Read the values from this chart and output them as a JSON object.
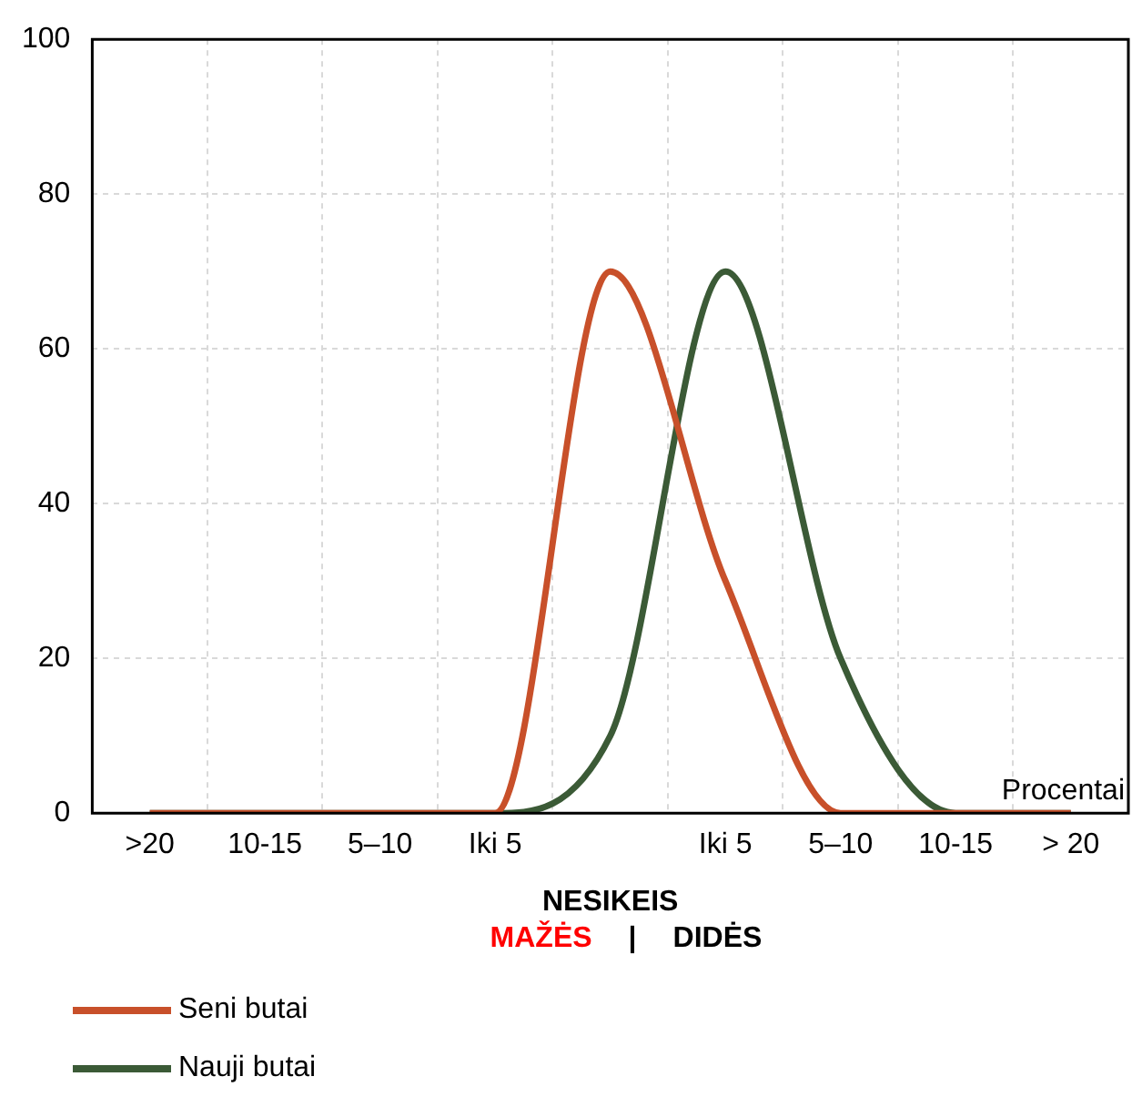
{
  "chart_data": {
    "type": "line",
    "ylabel": "Procentai",
    "xlabel": "NESIKEIS",
    "annotations": [
      "MAŽĖS",
      "|",
      "DIDĖS"
    ],
    "categories": [
      ">20",
      "10-15",
      "5–10",
      "Iki 5",
      null,
      "Iki 5",
      "5–10",
      "10-15",
      "> 20"
    ],
    "series": [
      {
        "name": "Seni butai",
        "color": "#c8502a",
        "values": [
          0,
          0,
          0,
          0,
          70,
          30,
          0,
          0,
          0
        ]
      },
      {
        "name": "Nauji butai",
        "color": "#3b5a36",
        "values": [
          0,
          0,
          0,
          0,
          10,
          70,
          20,
          0,
          0
        ]
      }
    ],
    "ylim": [
      0,
      100
    ],
    "yticks": [
      0,
      20,
      40,
      60,
      80,
      100
    ],
    "grid": true,
    "legend": "bottom left",
    "marker": "none",
    "line_style": "solid"
  }
}
